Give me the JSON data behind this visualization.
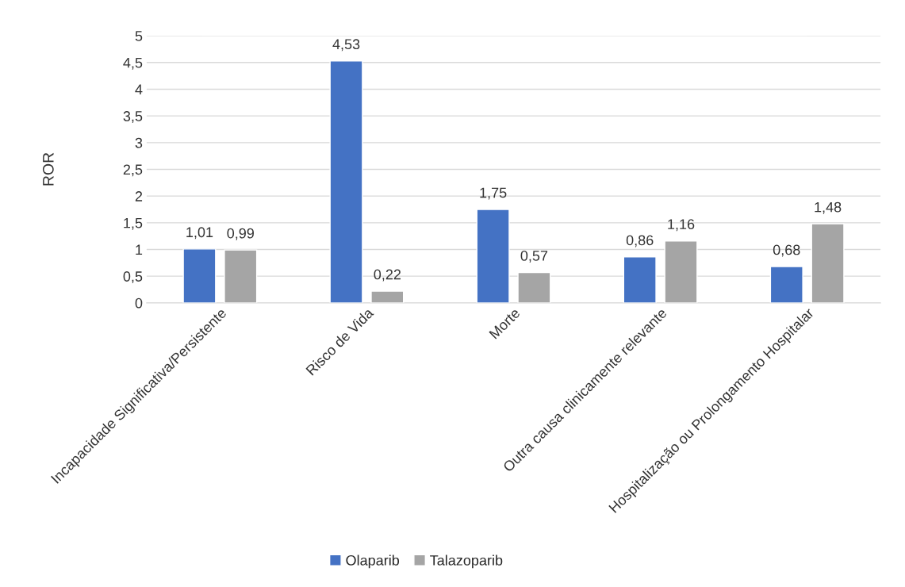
{
  "chart_data": {
    "type": "bar",
    "ylabel": "ROR",
    "categories": [
      "Incapacidade Significativa/Persistente",
      "Risco de Vida",
      "Morte",
      "Outra causa clinicamente relevante",
      "Hospitalização ou Prolongamento Hospitalar"
    ],
    "series": [
      {
        "name": "Olaparib",
        "color": "#4472c4",
        "values": [
          1.01,
          4.53,
          1.75,
          0.86,
          0.68
        ],
        "value_labels": [
          "1,01",
          "4,53",
          "1,75",
          "0,86",
          "0,68"
        ]
      },
      {
        "name": "Talazoparib",
        "color": "#a5a5a5",
        "values": [
          0.99,
          0.22,
          0.57,
          1.16,
          1.48
        ],
        "value_labels": [
          "0,99",
          "0,22",
          "0,57",
          "1,16",
          "1,48"
        ]
      }
    ],
    "ylim": [
      0,
      5
    ],
    "yticks": [
      0,
      {
        "value": 0.5,
        "label": "0,5"
      },
      1,
      {
        "value": 1.5,
        "label": "1,5"
      },
      2,
      {
        "value": 2.5,
        "label": "2,5"
      },
      3,
      {
        "value": 3.5,
        "label": "3,5"
      },
      4,
      {
        "value": 4.5,
        "label": "4,5"
      },
      5
    ],
    "grid": "y",
    "legend": "bottom"
  }
}
